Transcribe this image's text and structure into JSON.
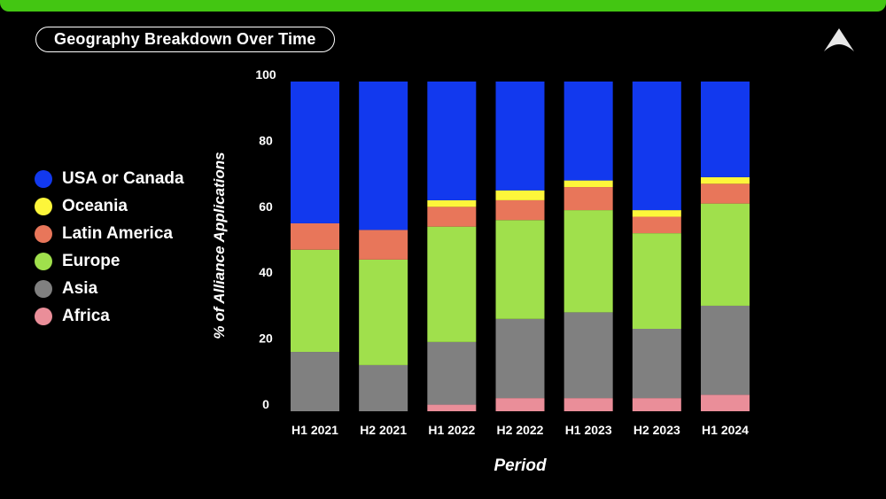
{
  "colors": {
    "top_bar": "#43c612",
    "background": "#000000",
    "usa_or_canada": "#1239ee",
    "oceania": "#fdf63a",
    "latin_america": "#e8765a",
    "europe": "#a0e04c",
    "asia": "#808080",
    "africa": "#ea8e99"
  },
  "header": {
    "title": "Geography Breakdown Over Time",
    "logo_icon": "triangle-logo-icon"
  },
  "chart_data": {
    "type": "bar",
    "stacked": true,
    "title": "Geography Breakdown Over Time",
    "xlabel": "Period",
    "ylabel": "% of Alliance Applications",
    "ylim": [
      0,
      100
    ],
    "yticks": [
      0,
      20,
      40,
      60,
      80,
      100
    ],
    "legend_position": "left",
    "grid": false,
    "categories": [
      "H1 2021",
      "H2 2021",
      "H1 2022",
      "H2 2022",
      "H1 2023",
      "H2 2023",
      "H1 2024"
    ],
    "series": [
      {
        "name": "Africa",
        "color": "#ea8e99",
        "values": [
          0,
          0,
          2,
          4,
          4,
          4,
          5
        ]
      },
      {
        "name": "Asia",
        "color": "#808080",
        "values": [
          18,
          14,
          19,
          24,
          26,
          21,
          27
        ]
      },
      {
        "name": "Europe",
        "color": "#a0e04c",
        "values": [
          31,
          32,
          35,
          30,
          31,
          29,
          31
        ]
      },
      {
        "name": "Latin America",
        "color": "#e8765a",
        "values": [
          8,
          9,
          6,
          6,
          7,
          5,
          6
        ]
      },
      {
        "name": "Oceania",
        "color": "#fdf63a",
        "values": [
          0,
          0,
          2,
          3,
          2,
          2,
          2
        ]
      },
      {
        "name": "USA or Canada",
        "color": "#1239ee",
        "values": [
          43,
          45,
          36,
          33,
          30,
          39,
          29
        ]
      }
    ]
  },
  "legend": {
    "items": [
      {
        "label": "USA or Canada",
        "color": "#1239ee"
      },
      {
        "label": "Oceania",
        "color": "#fdf63a"
      },
      {
        "label": "Latin America",
        "color": "#e8765a"
      },
      {
        "label": "Europe",
        "color": "#a0e04c"
      },
      {
        "label": "Asia",
        "color": "#808080"
      },
      {
        "label": "Africa",
        "color": "#ea8e99"
      }
    ]
  }
}
